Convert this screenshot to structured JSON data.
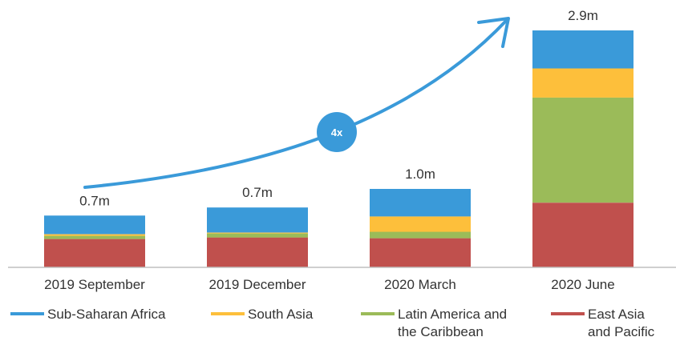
{
  "chart_data": {
    "type": "bar",
    "stacked": true,
    "title": "",
    "xlabel": "",
    "ylabel": "",
    "categories": [
      "2019 September",
      "2019 December",
      "2020 March",
      "2020 June"
    ],
    "totals_labels": [
      "0.7m",
      "0.7m",
      "1.0m",
      "2.9m"
    ],
    "series": [
      {
        "name": "East Asia and Pacific",
        "legend_lines": [
          "East Asia",
          "and Pacific"
        ],
        "color": "#c0504d",
        "values": [
          0.35,
          0.37,
          0.36,
          0.8
        ]
      },
      {
        "name": "Latin America and the Caribbean",
        "legend_lines": [
          "Latin America and",
          "the Caribbean"
        ],
        "color": "#9bbb59",
        "values": [
          0.04,
          0.05,
          0.08,
          1.3
        ]
      },
      {
        "name": "South Asia",
        "legend_lines": [
          "South Asia"
        ],
        "color": "#fdbf3b",
        "values": [
          0.02,
          0.01,
          0.19,
          0.36
        ]
      },
      {
        "name": "Sub-Saharan Africa",
        "legend_lines": [
          "Sub-Saharan Africa"
        ],
        "color": "#3a9ad9",
        "values": [
          0.23,
          0.31,
          0.34,
          0.47
        ]
      }
    ],
    "legend_order": [
      3,
      2,
      1,
      0
    ],
    "ylim": [
      0,
      3.0
    ],
    "grid": false,
    "legend_position": "bottom",
    "annotation": {
      "label": "4x",
      "color": "#3a9ad9"
    }
  }
}
